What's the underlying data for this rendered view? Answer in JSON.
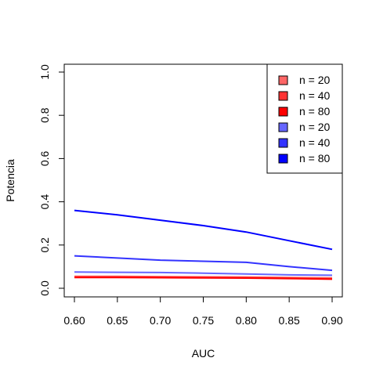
{
  "chart_data": {
    "type": "line",
    "title": "",
    "xlabel": "AUC",
    "ylabel": "Potencia",
    "x": [
      0.6,
      0.65,
      0.7,
      0.75,
      0.8,
      0.85,
      0.9
    ],
    "xlim": [
      0.6,
      0.9
    ],
    "ylim": [
      0.0,
      1.0
    ],
    "x_ticks": [
      "0.60",
      "0.65",
      "0.70",
      "0.75",
      "0.80",
      "0.85",
      "0.90"
    ],
    "y_ticks": [
      "0.0",
      "0.2",
      "0.4",
      "0.6",
      "0.8",
      "1.0"
    ],
    "grid": false,
    "legend_position": "top-right",
    "series": [
      {
        "name": "n = 20",
        "color": "#ff6666",
        "values": [
          0.055,
          0.055,
          0.054,
          0.053,
          0.052,
          0.05,
          0.048
        ]
      },
      {
        "name": "n = 40",
        "color": "#ff3333",
        "values": [
          0.052,
          0.052,
          0.051,
          0.05,
          0.049,
          0.047,
          0.044
        ]
      },
      {
        "name": "n = 80",
        "color": "#ff0000",
        "values": [
          0.05,
          0.05,
          0.049,
          0.048,
          0.047,
          0.045,
          0.042
        ]
      },
      {
        "name": "n = 20",
        "color": "#6666ff",
        "values": [
          0.075,
          0.074,
          0.073,
          0.07,
          0.066,
          0.062,
          0.06
        ]
      },
      {
        "name": "n = 40",
        "color": "#3333ff",
        "values": [
          0.15,
          0.14,
          0.13,
          0.125,
          0.12,
          0.1,
          0.083
        ]
      },
      {
        "name": "n = 80",
        "color": "#0000ff",
        "values": [
          0.36,
          0.34,
          0.315,
          0.29,
          0.26,
          0.22,
          0.18
        ]
      }
    ]
  }
}
